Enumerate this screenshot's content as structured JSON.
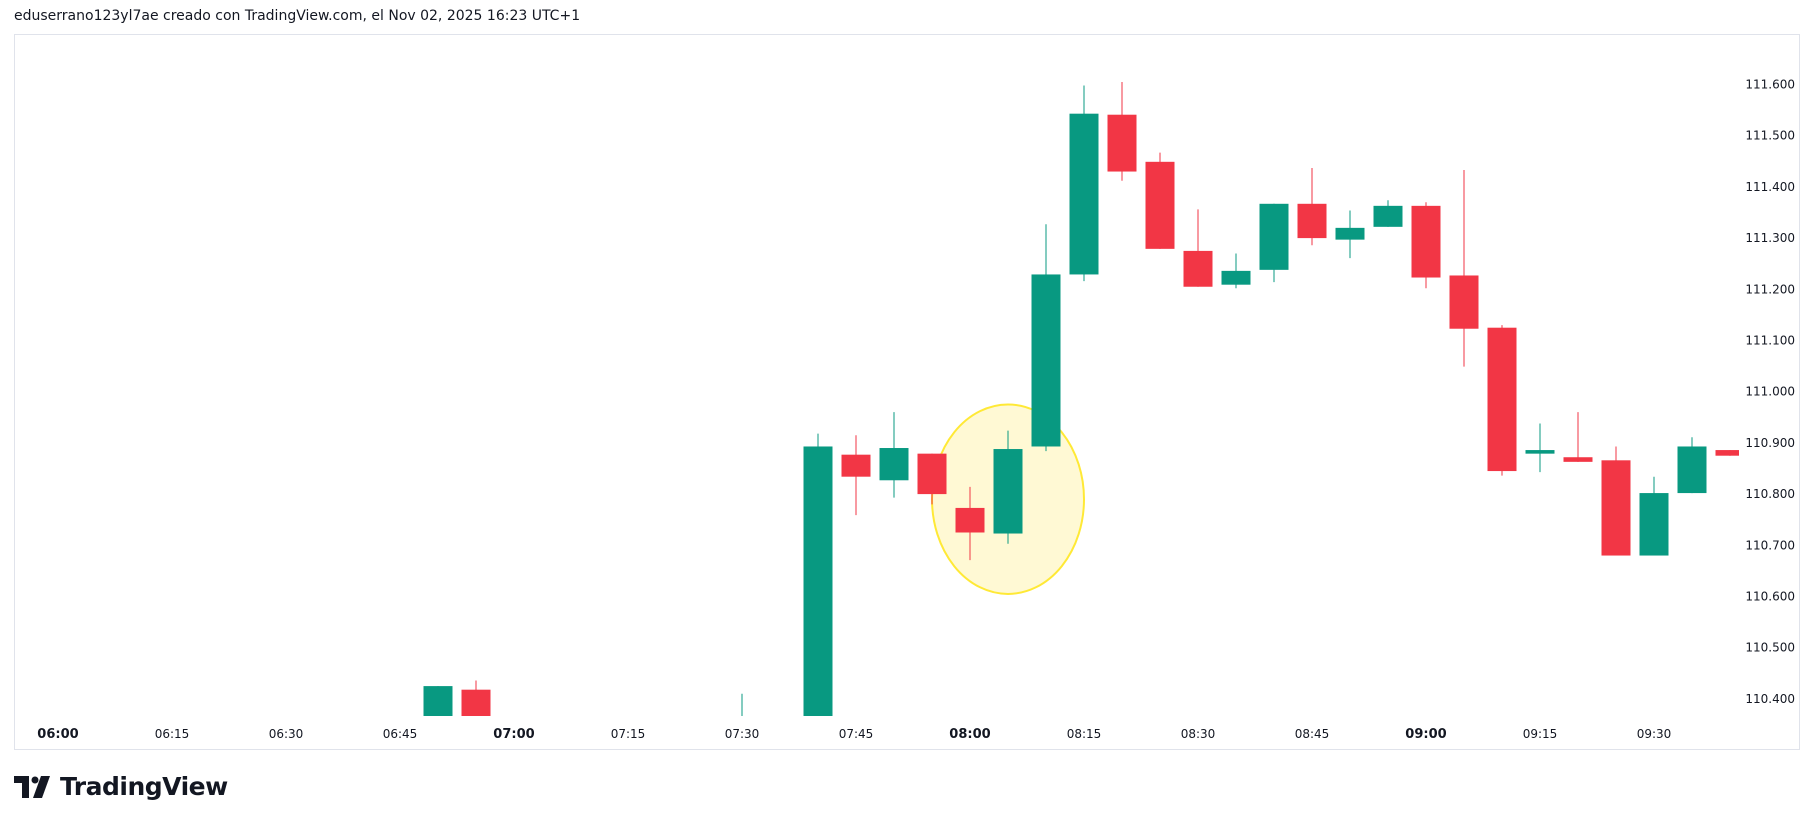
{
  "header": {
    "text": "eduserrano123yl7ae creado con TradingView.com, el Nov 02, 2025 16:23 UTC+1"
  },
  "logo": {
    "text": "TradingView"
  },
  "chart_data": {
    "type": "candlestick",
    "interval_minutes": 5,
    "colors": {
      "up": "#089981",
      "down": "#F23645",
      "highlight_fill": "#FFF9D4",
      "highlight_stroke": "#FFE936"
    },
    "ylim": [
      110.366,
      111.67
    ],
    "xlim": [
      "05:58",
      "09:42"
    ],
    "yticks": [
      "111.600",
      "111.500",
      "111.400",
      "111.300",
      "111.200",
      "111.100",
      "111.000",
      "110.900",
      "110.800",
      "110.700",
      "110.600",
      "110.500",
      "110.400"
    ],
    "xticks": [
      {
        "label": "06:00",
        "bold": true
      },
      {
        "label": "06:15",
        "bold": false
      },
      {
        "label": "06:30",
        "bold": false
      },
      {
        "label": "06:45",
        "bold": false
      },
      {
        "label": "07:00",
        "bold": true
      },
      {
        "label": "07:15",
        "bold": false
      },
      {
        "label": "07:30",
        "bold": false
      },
      {
        "label": "07:45",
        "bold": false
      },
      {
        "label": "08:00",
        "bold": true
      },
      {
        "label": "08:15",
        "bold": false
      },
      {
        "label": "08:30",
        "bold": false
      },
      {
        "label": "08:45",
        "bold": false
      },
      {
        "label": "09:00",
        "bold": true
      },
      {
        "label": "09:15",
        "bold": false
      },
      {
        "label": "09:30",
        "bold": false
      }
    ],
    "candles": [
      {
        "t": "06:50",
        "o": 110.36,
        "h": 110.425,
        "l": 110.35,
        "c": 110.425
      },
      {
        "t": "06:55",
        "o": 110.418,
        "h": 110.436,
        "l": 110.35,
        "c": 110.36
      },
      {
        "t": "07:30",
        "o": 110.35,
        "h": 110.41,
        "l": 110.34,
        "c": 110.36
      },
      {
        "t": "07:40",
        "o": 110.36,
        "h": 110.918,
        "l": 110.35,
        "c": 110.893
      },
      {
        "t": "07:45",
        "o": 110.877,
        "h": 110.915,
        "l": 110.759,
        "c": 110.834
      },
      {
        "t": "07:50",
        "o": 110.827,
        "h": 110.96,
        "l": 110.793,
        "c": 110.89
      },
      {
        "t": "07:55",
        "o": 110.879,
        "h": 110.879,
        "l": 110.78,
        "c": 110.8
      },
      {
        "t": "08:00",
        "o": 110.773,
        "h": 110.814,
        "l": 110.671,
        "c": 110.725
      },
      {
        "t": "08:05",
        "o": 110.723,
        "h": 110.924,
        "l": 110.703,
        "c": 110.888
      },
      {
        "t": "08:10",
        "o": 110.893,
        "h": 111.327,
        "l": 110.884,
        "c": 111.229
      },
      {
        "t": "08:15",
        "o": 111.229,
        "h": 111.598,
        "l": 111.216,
        "c": 111.543
      },
      {
        "t": "08:20",
        "o": 111.541,
        "h": 111.605,
        "l": 111.412,
        "c": 111.43
      },
      {
        "t": "08:25",
        "o": 111.449,
        "h": 111.467,
        "l": 111.279,
        "c": 111.279
      },
      {
        "t": "08:30",
        "o": 111.275,
        "h": 111.356,
        "l": 111.205,
        "c": 111.205
      },
      {
        "t": "08:35",
        "o": 111.209,
        "h": 111.27,
        "l": 111.202,
        "c": 111.236
      },
      {
        "t": "08:40",
        "o": 111.238,
        "h": 111.367,
        "l": 111.214,
        "c": 111.367
      },
      {
        "t": "08:45",
        "o": 111.367,
        "h": 111.437,
        "l": 111.286,
        "c": 111.3
      },
      {
        "t": "08:50",
        "o": 111.297,
        "h": 111.354,
        "l": 111.261,
        "c": 111.32
      },
      {
        "t": "08:55",
        "o": 111.322,
        "h": 111.374,
        "l": 111.322,
        "c": 111.363
      },
      {
        "t": "09:00",
        "o": 111.363,
        "h": 111.37,
        "l": 111.202,
        "c": 111.223
      },
      {
        "t": "09:05",
        "o": 111.227,
        "h": 111.433,
        "l": 111.049,
        "c": 111.123
      },
      {
        "t": "09:10",
        "o": 111.125,
        "h": 111.13,
        "l": 110.836,
        "c": 110.845
      },
      {
        "t": "09:15",
        "o": 110.879,
        "h": 110.938,
        "l": 110.843,
        "c": 110.886
      },
      {
        "t": "09:20",
        "o": 110.872,
        "h": 110.96,
        "l": 110.863,
        "c": 110.863
      },
      {
        "t": "09:25",
        "o": 110.866,
        "h": 110.893,
        "l": 110.68,
        "c": 110.68
      },
      {
        "t": "09:30",
        "o": 110.68,
        "h": 110.834,
        "l": 110.68,
        "c": 110.802
      },
      {
        "t": "09:35",
        "o": 110.802,
        "h": 110.911,
        "l": 110.802,
        "c": 110.893
      },
      {
        "t": "09:40",
        "o": 110.886,
        "h": 110.886,
        "l": 110.875,
        "c": 110.875
      }
    ],
    "annotations": [
      {
        "type": "ellipse",
        "center_time": "08:05",
        "center_price": 110.79,
        "half_width_minutes": 10,
        "half_height_price": 0.185
      }
    ]
  }
}
